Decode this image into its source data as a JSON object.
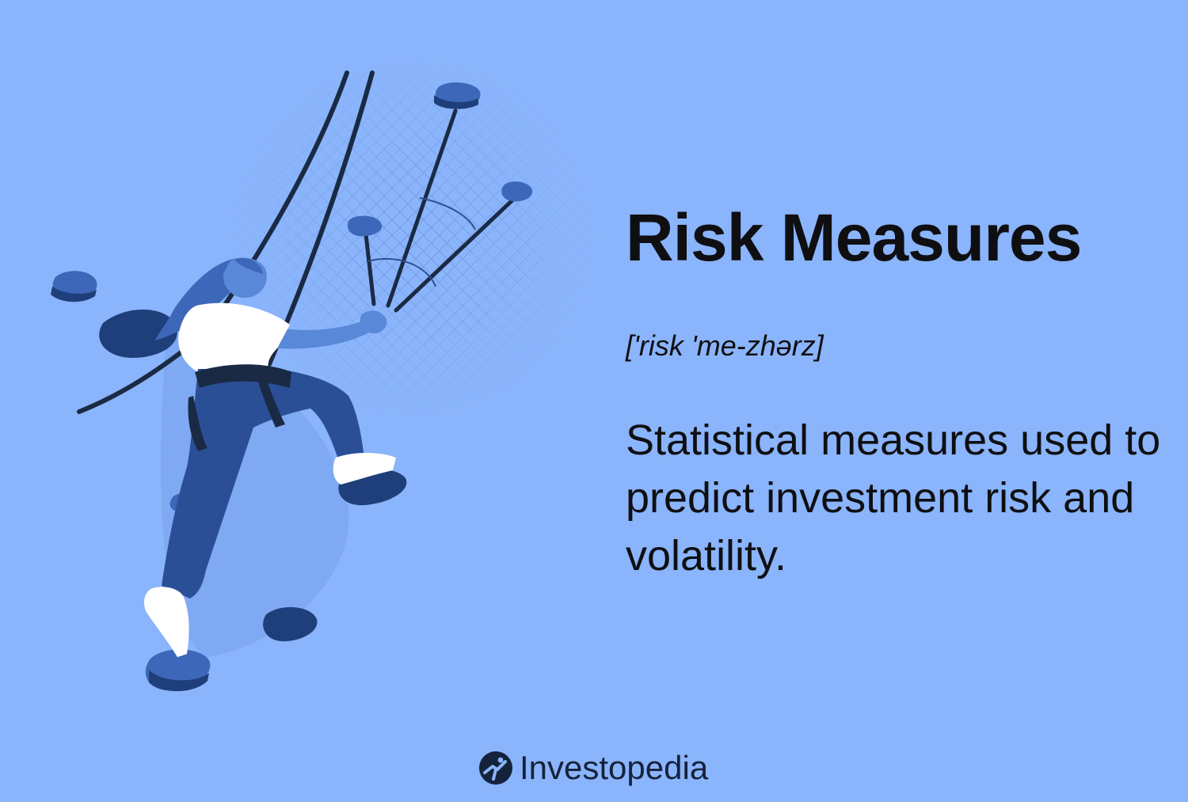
{
  "headline": {
    "title": "Risk Measures",
    "pronunciation": "['risk 'me-zhərz]"
  },
  "definition": {
    "text": "Statistical measures used to predict investment risk and volatility."
  },
  "brand": {
    "name": "Investopedia",
    "logo_icon": "investopedia-logo-icon"
  },
  "illustration": {
    "subject": "rock-climber-illustration"
  },
  "colors": {
    "background": "#8ab4fb",
    "text": "#0f0f12",
    "navy": "#1f3f7a",
    "mid_blue": "#3d67b8",
    "shirt": "#ffffff"
  }
}
